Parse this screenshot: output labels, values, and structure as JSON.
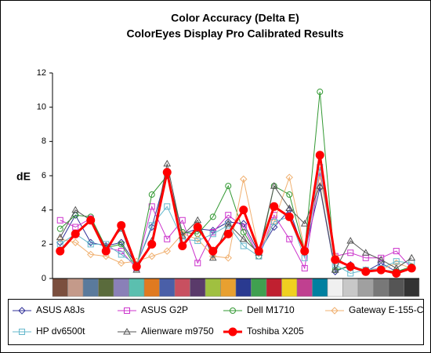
{
  "chart_data": {
    "type": "line",
    "title": "Color Accuracy (Delta E)",
    "subtitle": "ColorEyes Display Pro Calibrated Results",
    "y_label": "dE",
    "categories": [
      null,
      null,
      null,
      null,
      null,
      null,
      null,
      null,
      null,
      null,
      null,
      null,
      null,
      null,
      null,
      null,
      null,
      null,
      null,
      null,
      null,
      null,
      null,
      null
    ],
    "category_colors": [
      "#7b4f3e",
      "#c49a8a",
      "#5a7a9c",
      "#5a6b3c",
      "#8a80b8",
      "#5bbfaf",
      "#e07a20",
      "#4a5fa8",
      "#c85060",
      "#5a3a6a",
      "#a0c040",
      "#e8a030",
      "#2a3a90",
      "#40a050",
      "#c02030",
      "#f0d020",
      "#c04090",
      "#0080a0",
      "#f0f0f0",
      "#c8c8c8",
      "#a0a0a0",
      "#787878",
      "#555555",
      "#333333"
    ],
    "ylim": [
      0,
      12
    ],
    "yticks": [
      0,
      2,
      4,
      6,
      8,
      10,
      12
    ],
    "grid": false,
    "series": [
      {
        "name": "ASUS A8Js",
        "color": "#333399",
        "marker": "diamond",
        "values": [
          2.1,
          3.7,
          2.1,
          1.9,
          2.1,
          0.8,
          3.0,
          6.2,
          2.6,
          2.9,
          2.8,
          3.3,
          3.2,
          1.5,
          3.0,
          4.0,
          1.5,
          5.3,
          0.4,
          0.8,
          0.4,
          0.9,
          0.4,
          0.6
        ]
      },
      {
        "name": "ASUS G2P",
        "color": "#cc33cc",
        "marker": "square",
        "values": [
          3.4,
          3.0,
          3.5,
          1.8,
          1.6,
          0.6,
          4.2,
          2.3,
          3.4,
          0.9,
          2.7,
          3.7,
          3.0,
          1.3,
          3.7,
          2.3,
          0.6,
          6.2,
          1.3,
          1.5,
          1.2,
          1.2,
          1.6,
          0.6
        ]
      },
      {
        "name": "Dell M1710",
        "color": "#339933",
        "marker": "circle",
        "values": [
          2.9,
          3.7,
          3.6,
          1.8,
          2.0,
          0.6,
          4.9,
          6.0,
          2.7,
          2.6,
          3.6,
          5.4,
          2.7,
          1.3,
          5.4,
          4.9,
          1.6,
          10.9,
          0.5,
          0.7,
          0.5,
          0.5,
          0.4,
          0.7
        ]
      },
      {
        "name": "Gateway E-155-C",
        "color": "#f0b070",
        "marker": "diamond",
        "values": [
          2.3,
          2.1,
          1.4,
          1.3,
          0.9,
          1.0,
          1.3,
          1.6,
          2.6,
          2.3,
          1.3,
          1.2,
          5.8,
          1.6,
          3.3,
          5.9,
          1.7,
          6.0,
          1.3,
          0.6,
          0.5,
          0.5,
          0.9,
          0.6
        ]
      },
      {
        "name": "HP dv6500t",
        "color": "#66b8cc",
        "marker": "square",
        "values": [
          2.0,
          2.6,
          2.0,
          2.0,
          1.4,
          0.8,
          3.1,
          4.2,
          2.3,
          2.2,
          2.6,
          3.1,
          1.9,
          1.3,
          3.3,
          3.6,
          1.2,
          6.5,
          0.8,
          0.3,
          0.5,
          0.6,
          1.0,
          0.9
        ]
      },
      {
        "name": "Alienware m9750",
        "color": "#555555",
        "marker": "triangle",
        "values": [
          2.4,
          4.0,
          3.4,
          1.8,
          2.9,
          0.5,
          2.2,
          6.7,
          2.5,
          3.4,
          1.2,
          3.2,
          2.3,
          1.5,
          5.4,
          4.1,
          3.2,
          5.4,
          0.5,
          2.2,
          1.5,
          1.1,
          0.6,
          1.2
        ]
      },
      {
        "name": "Toshiba X205",
        "color": "#ff0000",
        "marker": "dot",
        "values": [
          1.6,
          2.6,
          3.4,
          1.6,
          3.1,
          0.7,
          2.0,
          6.2,
          1.9,
          3.0,
          1.6,
          2.6,
          4.0,
          1.6,
          4.2,
          3.6,
          1.6,
          7.2,
          1.1,
          0.7,
          0.4,
          0.5,
          0.3,
          0.6
        ]
      }
    ]
  }
}
